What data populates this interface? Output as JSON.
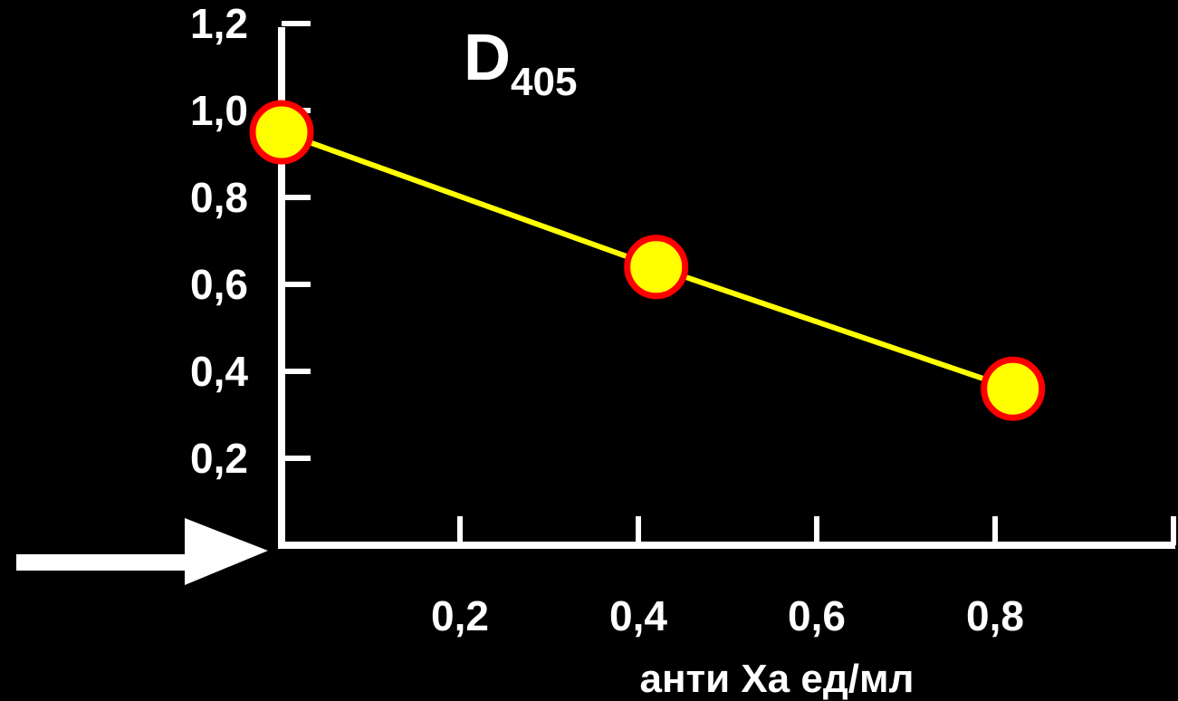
{
  "chart_data": {
    "type": "line",
    "title": "D",
    "title_subscript": "405",
    "xlabel": "анти Xa ед/мл",
    "ylabel": "",
    "x_tick_labels": [
      "0,2",
      "0,4",
      "0,6",
      "0,8"
    ],
    "x_ticks": [
      0.2,
      0.4,
      0.6,
      0.8
    ],
    "y_tick_labels": [
      "0,2",
      "0,4",
      "0,6",
      "0,8",
      "1,0",
      "1,2"
    ],
    "y_ticks": [
      0.2,
      0.4,
      0.6,
      0.8,
      1.0,
      1.2
    ],
    "xlim": [
      0,
      1.0
    ],
    "ylim": [
      0,
      1.2
    ],
    "grid": false,
    "series": [
      {
        "x": [
          0.0,
          0.42,
          0.82
        ],
        "y": [
          0.95,
          0.64,
          0.36
        ],
        "line_color": "#ffff00",
        "marker_fill": "#ffff00",
        "marker_edge": "#ff0000"
      }
    ],
    "background": "#000000",
    "axis_color": "#ffffff",
    "annotations": [
      {
        "type": "arrow",
        "icon": "arrow-right-icon",
        "color": "#ffffff",
        "points_to": "origin"
      }
    ]
  }
}
